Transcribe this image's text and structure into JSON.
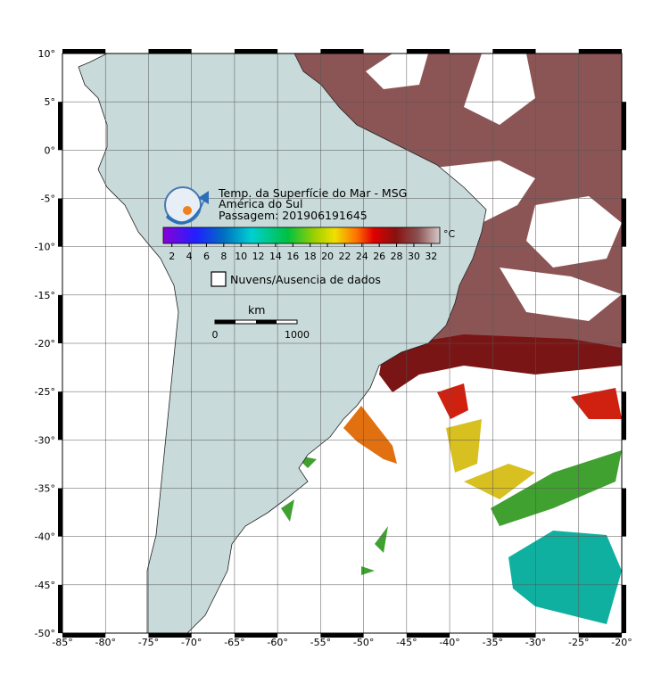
{
  "header": {
    "title": "Temp. da Superfície do Mar - MSG",
    "region": "América do Sul",
    "pass": "Passagem: 201906191645"
  },
  "colorbar": {
    "ticks": [
      2,
      4,
      6,
      8,
      10,
      12,
      14,
      16,
      18,
      20,
      22,
      24,
      26,
      28,
      30,
      32
    ],
    "unit": "°C"
  },
  "legend": {
    "no_data": "Nuvens/Ausencia de dados"
  },
  "scale_bar": {
    "unit": "km",
    "start": 0,
    "end": 1000
  },
  "axes": {
    "lon": [
      "-85°",
      "-80°",
      "-75°",
      "-70°",
      "-65°",
      "-60°",
      "-55°",
      "-50°",
      "-45°",
      "-40°",
      "-35°",
      "-30°",
      "-25°",
      "-20°"
    ],
    "lat": [
      "10°",
      "5°",
      "0°",
      "-5°",
      "-10°",
      "-15°",
      "-20°",
      "-25°",
      "-30°",
      "-35°",
      "-40°",
      "-45°",
      "-50°"
    ]
  }
}
